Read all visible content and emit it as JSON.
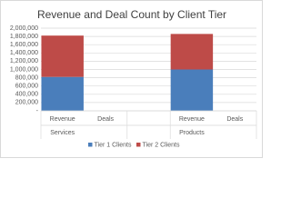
{
  "chart_data": {
    "type": "stacked_bar",
    "title": "Revenue and Deal Count by Client Tier",
    "categories": [
      "Revenue",
      "Deals",
      null,
      "Revenue",
      "Deals"
    ],
    "group_labels": [
      "Services",
      null,
      null,
      "Products",
      null
    ],
    "series": [
      {
        "name": "Tier 1 Clients",
        "color": "#4a7ebb",
        "values": [
          820000,
          40,
          null,
          1000000,
          60
        ]
      },
      {
        "name": "Tier 2 Clients",
        "color": "#be4b48",
        "values": [
          1000000,
          30,
          null,
          860000,
          45
        ]
      }
    ],
    "ylim": [
      0,
      2000000
    ],
    "yticks": [
      {
        "value": 0,
        "label": "-"
      },
      {
        "value": 200000,
        "label": "200,000"
      },
      {
        "value": 400000,
        "label": "400,000"
      },
      {
        "value": 600000,
        "label": "600,000"
      },
      {
        "value": 800000,
        "label": "800,000"
      },
      {
        "value": 1000000,
        "label": "1,000,000"
      },
      {
        "value": 1200000,
        "label": "1,200,000"
      },
      {
        "value": 1400000,
        "label": "1,400,000"
      },
      {
        "value": 1600000,
        "label": "1,600,000"
      },
      {
        "value": 1800000,
        "label": "1,800,000"
      },
      {
        "value": 2000000,
        "label": "2,000,000"
      }
    ],
    "grid": true,
    "legend": "bottom"
  }
}
